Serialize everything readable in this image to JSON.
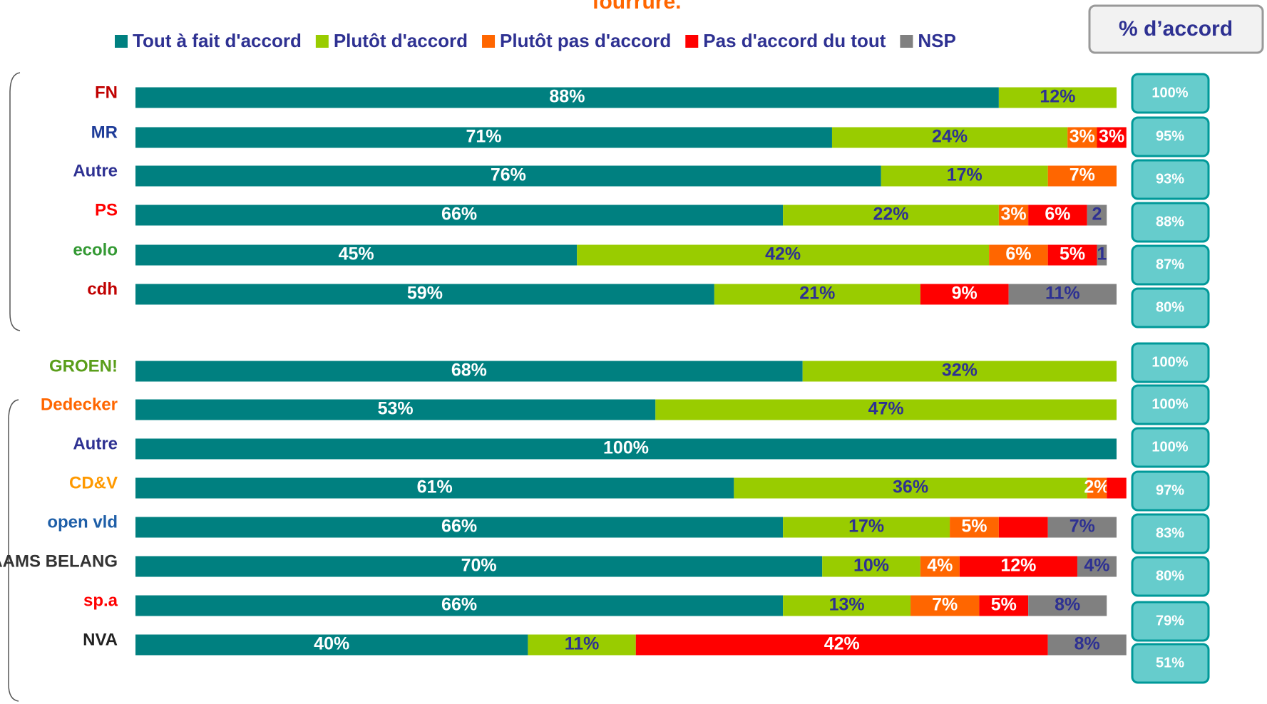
{
  "chart_data": {
    "type": "stacked-barh",
    "title": "fourrure.",
    "categories": [
      "FN",
      "MR",
      "Autre",
      "PS",
      "ecolo",
      "cdh",
      "GROEN!",
      "Dedecker",
      "Autre",
      "CD&V",
      "open vld",
      "VLAAMS BELANG",
      "sp.a",
      "NVA"
    ],
    "xlim": [
      0,
      100
    ],
    "series": [
      {
        "name": "Tout à fait d'accord",
        "color": "#008080",
        "label_color": "#ffffff",
        "values": [
          88,
          71,
          76,
          66,
          45,
          59,
          68,
          53,
          100,
          61,
          66,
          70,
          66,
          40
        ],
        "value_labels": [
          "88%",
          "71%",
          "76%",
          "66%",
          "45%",
          "59%",
          "68%",
          "53%",
          "100%",
          "61%",
          "66%",
          "70%",
          "66%",
          "40%"
        ]
      },
      {
        "name": "Plutôt d'accord",
        "color": "#99cc00",
        "label_color": "#2e3192",
        "values": [
          12,
          24,
          17,
          22,
          42,
          21,
          32,
          47,
          null,
          36,
          17,
          10,
          13,
          11
        ],
        "value_labels": [
          "12%",
          "24%",
          "17%",
          "22%",
          "42%",
          "21%",
          "32%",
          "47%",
          null,
          "36%",
          "17%",
          "10%",
          "13%",
          "11%"
        ]
      },
      {
        "name": "Plutôt pas d'accord",
        "color": "#ff6600",
        "label_color": "#ffffff",
        "values": [
          null,
          3,
          7,
          3,
          6,
          null,
          null,
          null,
          null,
          2,
          5,
          4,
          7,
          null
        ],
        "value_labels": [
          null,
          "3%",
          "7%",
          "3%",
          "6%",
          null,
          null,
          null,
          null,
          "2%",
          "5%",
          "4%",
          "7%",
          null
        ]
      },
      {
        "name": "Pas d'accord du tout",
        "color": "#ff0000",
        "label_color": "#ffffff",
        "values": [
          null,
          3,
          null,
          6,
          5,
          9,
          null,
          null,
          null,
          2,
          5,
          12,
          5,
          42
        ],
        "value_labels": [
          null,
          "3%",
          null,
          "6%",
          "5%",
          "9%",
          null,
          null,
          null,
          null,
          null,
          "12%",
          "5%",
          "42%"
        ]
      },
      {
        "name": "NSP",
        "color": "#808080",
        "label_color": "#2e3192",
        "values": [
          null,
          null,
          null,
          2,
          1,
          11,
          null,
          null,
          null,
          null,
          7,
          4,
          8,
          8
        ],
        "value_labels": [
          null,
          null,
          null,
          "2",
          "1",
          "11%",
          null,
          null,
          null,
          null,
          "7%",
          "4%",
          "8%",
          "8%"
        ]
      }
    ],
    "agreement": {
      "title": "% d’accord",
      "values": [
        100,
        95,
        93,
        88,
        87,
        80,
        100,
        100,
        100,
        97,
        83,
        80,
        79,
        51
      ],
      "value_labels": [
        "100%",
        "95%",
        "93%",
        "88%",
        "87%",
        "80%",
        "100%",
        "100%",
        "100%",
        "97%",
        "83%",
        "80%",
        "79%",
        "51%"
      ]
    }
  }
}
